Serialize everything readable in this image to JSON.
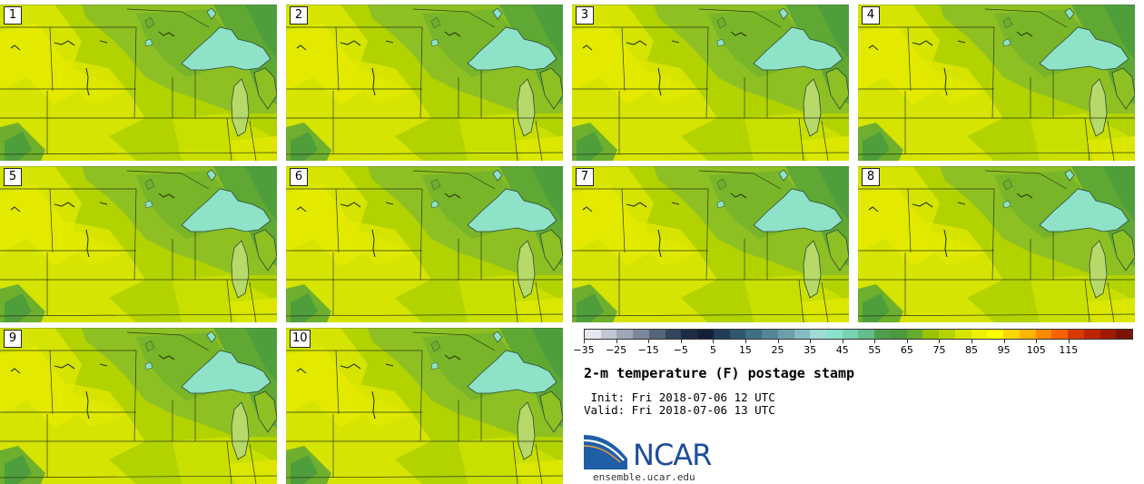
{
  "panels": [
    {
      "label": "1"
    },
    {
      "label": "2"
    },
    {
      "label": "3"
    },
    {
      "label": "4"
    },
    {
      "label": "5"
    },
    {
      "label": "6"
    },
    {
      "label": "7"
    },
    {
      "label": "8"
    },
    {
      "label": "9"
    },
    {
      "label": "10"
    }
  ],
  "colorbar": {
    "colors": [
      "#e6e8ee",
      "#c3c7d2",
      "#a0a7b6",
      "#7c879a",
      "#56657c",
      "#34465d",
      "#1f2c45",
      "#152038",
      "#213c58",
      "#305770",
      "#3f6f84",
      "#548797",
      "#6aa0ab",
      "#85bdc2",
      "#a0dcd6",
      "#8ae2cd",
      "#78d3b3",
      "#63bd8c",
      "#4e9e4d",
      "#4b9a3e",
      "#64aa2c",
      "#97c300",
      "#b4d400",
      "#d6e500",
      "#eef000",
      "#ffff00",
      "#ffd700",
      "#ffb600",
      "#ff8a00",
      "#f66300",
      "#d93a00",
      "#bd2400",
      "#9f1a00",
      "#7a1405"
    ],
    "tick_labels": [
      "-35",
      "-25",
      "-15",
      "-5",
      "5",
      "15",
      "25",
      "35",
      "45",
      "55",
      "65",
      "75",
      "85",
      "95",
      "105",
      "115"
    ]
  },
  "title": "2-m temperature (F) postage stamp",
  "init": " Init: Fri 2018-07-06 12 UTC",
  "valid": "Valid: Fri 2018-07-06 13 UTC",
  "logo_text": "NCAR",
  "website": "ensemble.ucar.edu"
}
